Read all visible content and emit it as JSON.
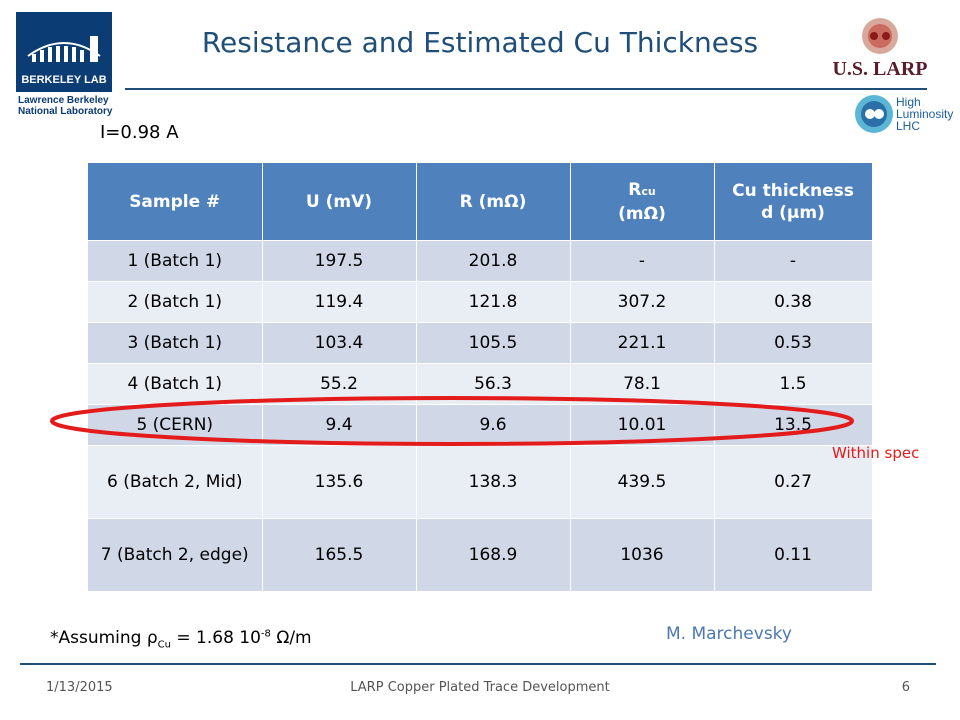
{
  "header": {
    "title": "Resistance and Estimated Cu Thickness",
    "lbl_logo_text": "BERKELEY LAB",
    "lbl_name_line1": "Lawrence Berkeley",
    "lbl_name_line2": "National Laboratory",
    "larp_text": "U.S. LARP",
    "hilumi_line1": "High",
    "hilumi_line2": "Luminosity",
    "hilumi_line3": "LHC"
  },
  "current_label": "I=0.98 A",
  "table": {
    "headers": {
      "sample": "Sample #",
      "u": "U (mV)",
      "r": "R (mΩ)",
      "rcu_main": "R",
      "rcu_sub": "cu",
      "rcu_unit": "(mΩ)",
      "cu_line1": "Cu thickness",
      "cu_line2": "d (μm)"
    },
    "rows": [
      {
        "sample": "1 (Batch 1)",
        "u": "197.5",
        "r": "201.8",
        "rcu": "-",
        "d": "-"
      },
      {
        "sample": "2 (Batch 1)",
        "u": "119.4",
        "r": "121.8",
        "rcu": "307.2",
        "d": "0.38"
      },
      {
        "sample": "3 (Batch 1)",
        "u": "103.4",
        "r": "105.5",
        "rcu": "221.1",
        "d": "0.53"
      },
      {
        "sample": "4 (Batch 1)",
        "u": "55.2",
        "r": "56.3",
        "rcu": "78.1",
        "d": "1.5"
      },
      {
        "sample": "5 (CERN)",
        "u": "9.4",
        "r": "9.6",
        "rcu": "10.01",
        "d": "13.5"
      },
      {
        "sample": "6 (Batch 2, Mid)",
        "u": "135.6",
        "r": "138.3",
        "rcu": "439.5",
        "d": "0.27"
      },
      {
        "sample": "7 (Batch 2, edge)",
        "u": "165.5",
        "r": "168.9",
        "rcu": "1036",
        "d": "0.11"
      }
    ]
  },
  "annotation": {
    "within_spec": "Within spec",
    "highlight_color": "#e31b1b"
  },
  "footnote": {
    "prefix": "*Assuming ",
    "rho": "ρ",
    "rho_sub": "Cu",
    "eq": " = 1.68 10",
    "exp": "-8",
    "unit": " Ω/m"
  },
  "author": "M. Marchevsky",
  "footer": {
    "date": "1/13/2015",
    "center": "LARP Copper Plated Trace Development",
    "page": "6"
  },
  "colors": {
    "title": "#1f4e79",
    "header_bg": "#4f81bd",
    "row_odd": "#d0d8e8",
    "row_even": "#e9edf4"
  }
}
